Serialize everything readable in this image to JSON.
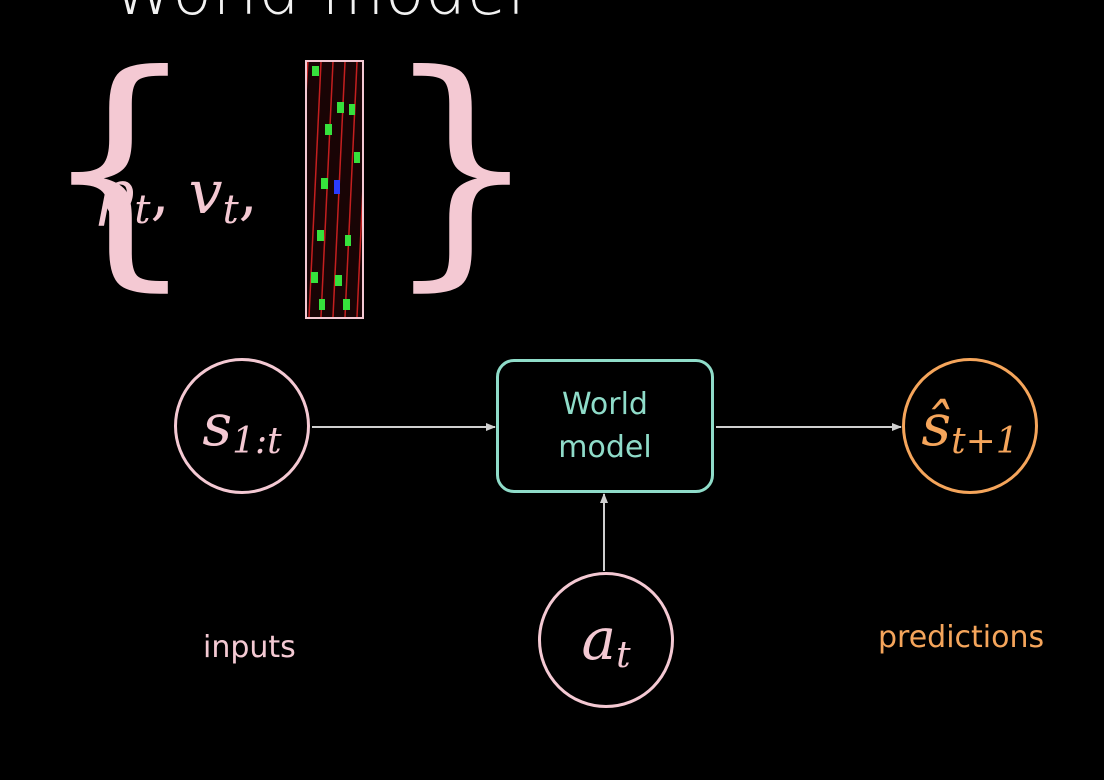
{
  "slide": {
    "title": "World model"
  },
  "state_set": {
    "open_brace": "{",
    "close_brace": "}",
    "position_term": {
      "symbol": "p",
      "subscript": "t"
    },
    "velocity_term": {
      "symbol": "v",
      "subscript": "t"
    },
    "separator": ","
  },
  "diagram": {
    "input_node": {
      "symbol": "s",
      "subscript": "1:t"
    },
    "model_box": {
      "line1": "World",
      "line2": "model"
    },
    "action_node": {
      "symbol": "a",
      "subscript": "t"
    },
    "prediction_node": {
      "symbol": "ŝ",
      "subscript": "t+1"
    },
    "inputs_caption": "inputs",
    "predictions_caption": "predictions"
  },
  "colors": {
    "background": "#000000",
    "input_pink": "#f4c9d3",
    "model_teal": "#8fdcc9",
    "prediction_orange": "#f5a55b",
    "arrow_gray": "#cfcfcf"
  }
}
